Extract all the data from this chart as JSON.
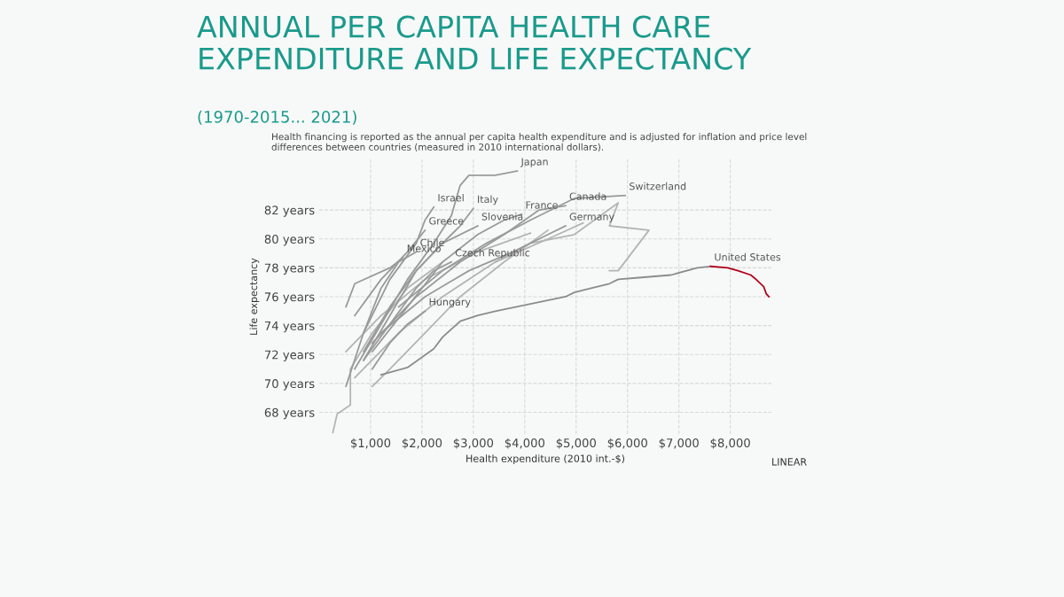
{
  "chart_data": {
    "type": "line",
    "title": "ANNUAL PER CAPITA HEALTH CARE\nEXPENDITURE AND LIFE EXPECTANCY",
    "subtitle": "(1970-2015... 2021)",
    "xlabel": "Health expenditure (2010 int.-$)",
    "ylabel": "Life expectancy",
    "annotations": [
      "Health financing is reported as the annual per capita health expenditure and is adjusted for inflation and price level\ndifferences between countries (measured in 2010 international dollars).",
      "LINEAR"
    ],
    "xlim": [
      0,
      8800
    ],
    "ylim": [
      66.5,
      85.5
    ],
    "xticks": [
      {
        "value": 1000,
        "label": "$1,000"
      },
      {
        "value": 2000,
        "label": "$2,000"
      },
      {
        "value": 3000,
        "label": "$3,000"
      },
      {
        "value": 4000,
        "label": "$4,000"
      },
      {
        "value": 5000,
        "label": "$5,000"
      },
      {
        "value": 6000,
        "label": "$6,000"
      },
      {
        "value": 7000,
        "label": "$7,000"
      },
      {
        "value": 8000,
        "label": "$8,000"
      }
    ],
    "yticks": [
      {
        "value": 68,
        "label": "68 years"
      },
      {
        "value": 70,
        "label": "70 years"
      },
      {
        "value": 72,
        "label": "72 years"
      },
      {
        "value": 74,
        "label": "74 years"
      },
      {
        "value": 76,
        "label": "76 years"
      },
      {
        "value": 78,
        "label": "78 years"
      },
      {
        "value": 80,
        "label": "80 years"
      },
      {
        "value": 82,
        "label": "82 years"
      }
    ],
    "grid": true,
    "legend": false,
    "marker": "none",
    "line_style": "solid",
    "series": [
      {
        "color": "#b4b4b4",
        "x": [
          265,
          351,
          607,
          607,
          1034,
          1718,
          2401
        ],
        "values": [
          66.6,
          67.9,
          68.5,
          71.0,
          73.5,
          76.6,
          78.4
        ]
      },
      {
        "color": "#b4b4b4",
        "x": [
          1034,
          1376,
          2060,
          2743,
          3598,
          4452
        ],
        "values": [
          69.8,
          71.0,
          73.5,
          76.0,
          78.4,
          80.6
        ]
      },
      {
        "color": "#b4b4b4",
        "x": [
          521,
          1205,
          2060,
          3085,
          4110
        ],
        "values": [
          72.2,
          74.7,
          77.2,
          79.1,
          80.4
        ]
      },
      {
        "color": "#b4b4b4",
        "x": [
          692,
          1547,
          2401,
          3427,
          4452,
          5136
        ],
        "values": [
          70.4,
          73.5,
          76.0,
          78.4,
          80.0,
          81.1
        ]
      },
      {
        "color": "#b4b4b4",
        "x": [
          3427,
          4110,
          4965,
          5819,
          5648,
          6418,
          5819,
          5648
        ],
        "values": [
          78.4,
          79.7,
          80.3,
          82.5,
          80.9,
          80.6,
          77.8,
          77.8
        ]
      },
      {
        "name": "Japan",
        "color": "#9a9a9a",
        "x": [
          692,
          1205,
          1718,
          2230,
          2572,
          2743,
          2914,
          3427,
          3855
        ],
        "values": [
          71.0,
          74.1,
          77.2,
          79.7,
          81.6,
          83.7,
          84.4,
          84.4,
          84.7
        ]
      },
      {
        "name": "Italy",
        "color": "#9a9a9a",
        "x": [
          863,
          1376,
          1889,
          2401,
          2743,
          2999
        ],
        "values": [
          71.6,
          74.7,
          77.8,
          79.7,
          80.9,
          82.1
        ]
      },
      {
        "name": "France",
        "color": "#9a9a9a",
        "x": [
          1034,
          1718,
          2401,
          3085,
          3598,
          3940
        ],
        "values": [
          72.2,
          75.3,
          78.4,
          80.3,
          81.3,
          81.7
        ]
      },
      {
        "name": "Canada",
        "color": "#9a9a9a",
        "x": [
          1034,
          1889,
          2743,
          3598,
          4281,
          4794
        ],
        "values": [
          72.8,
          76.0,
          78.4,
          80.3,
          82.0,
          82.3
        ]
      },
      {
        "name": "Switzerland",
        "color": "#9a9a9a",
        "x": [
          1547,
          2401,
          3256,
          4110,
          4965,
          5956
        ],
        "values": [
          75.3,
          77.8,
          79.7,
          81.3,
          82.8,
          83.0
        ]
      },
      {
        "name": "Israel",
        "color": "#9a9a9a",
        "x": [
          863,
          1376,
          1889,
          2060,
          2230
        ],
        "values": [
          73.5,
          77.2,
          79.7,
          81.3,
          82.2
        ]
      },
      {
        "name": "Greece",
        "color": "#9a9a9a",
        "x": [
          692,
          1205,
          1718,
          2060
        ],
        "values": [
          74.7,
          77.2,
          79.1,
          80.6
        ]
      },
      {
        "name": "Slovenia",
        "color": "#9a9a9a",
        "x": [
          863,
          1376,
          1889,
          2401,
          3085
        ],
        "values": [
          72.2,
          75.3,
          77.8,
          79.7,
          80.9
        ]
      },
      {
        "name": "Chile",
        "color": "#9a9a9a",
        "x": [
          521,
          863,
          1205,
          1547,
          1889
        ],
        "values": [
          69.8,
          73.5,
          76.6,
          78.4,
          79.1
        ]
      },
      {
        "name": "Germany",
        "color": "#9a9a9a",
        "x": [
          1205,
          2060,
          2914,
          3769,
          4452,
          4794
        ],
        "values": [
          73.5,
          76.0,
          77.8,
          79.1,
          80.3,
          80.9
        ]
      },
      {
        "name": "Czech Republic",
        "color": "#9a9a9a",
        "x": [
          863,
          1376,
          1889,
          2230,
          2572
        ],
        "values": [
          71.6,
          74.1,
          76.6,
          77.8,
          78.4
        ]
      },
      {
        "name": "Mexico",
        "color": "#9a9a9a",
        "x": [
          521,
          692,
          1376,
          1632
        ],
        "values": [
          75.3,
          76.9,
          78.0,
          78.7
        ]
      },
      {
        "name": "Hungary",
        "color": "#9a9a9a",
        "x": [
          1034,
          1376,
          1718,
          2060
        ],
        "values": [
          71.0,
          72.8,
          74.1,
          75.0
        ]
      },
      {
        "name": "United States",
        "color": "#8c8c8c",
        "x": [
          1205,
          1718,
          2230,
          2401,
          2743,
          3085,
          3427,
          4110,
          4794,
          4965,
          5307,
          5648,
          5819,
          6161,
          6845,
          7357,
          7614
        ],
        "values": [
          70.6,
          71.1,
          72.4,
          73.2,
          74.3,
          74.7,
          75.0,
          75.5,
          76.0,
          76.3,
          76.6,
          76.9,
          77.2,
          77.3,
          77.5,
          78.0,
          78.1
        ]
      },
      {
        "color": "#b00018",
        "x": [
          7614,
          7950,
          8150,
          8400,
          8500,
          8650,
          8700,
          8750
        ],
        "values": [
          78.1,
          78.0,
          77.8,
          77.5,
          77.2,
          76.7,
          76.2,
          76.0
        ]
      }
    ]
  }
}
